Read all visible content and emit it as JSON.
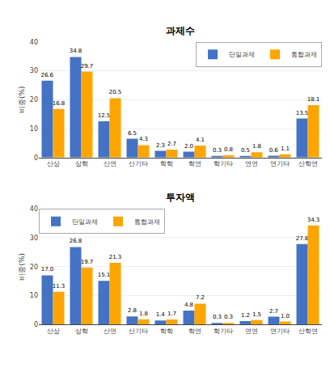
{
  "chart_data": [
    {
      "type": "bar",
      "title": "과제수",
      "categories": [
        "산상",
        "상학",
        "산연",
        "산기타",
        "학학",
        "학연",
        "학기타",
        "연연",
        "연기타",
        "산학연"
      ],
      "series": [
        {
          "name": "단일과제",
          "color": "#4472C4",
          "values": [
            26.6,
            34.8,
            12.5,
            6.5,
            2.3,
            2.0,
            0.3,
            0.5,
            0.6,
            13.5
          ],
          "value_labels": [
            "26.6",
            "34.8",
            "12.5",
            "6.5",
            "2.3",
            "2.0",
            "0.3",
            "0.5",
            "0.6",
            "13.5"
          ]
        },
        {
          "name": "통합과제",
          "color": "#FFA500",
          "values": [
            16.8,
            29.7,
            20.5,
            4.3,
            2.7,
            4.1,
            0.8,
            1.8,
            1.1,
            18.1
          ],
          "value_labels": [
            "16.8",
            "29.7",
            "20.5",
            "4.3",
            "2.7",
            "4.1",
            "0.8",
            "1.8",
            "1.1",
            "18.1"
          ]
        }
      ],
      "ylabel": "비중(%)",
      "ylim": [
        0,
        40
      ],
      "yticks": [
        0,
        10,
        20,
        30,
        40
      ],
      "grid": true,
      "legend": "upper right",
      "data_labels": true
    },
    {
      "type": "bar",
      "title": "투자액",
      "categories": [
        "산상",
        "상학",
        "산연",
        "산기타",
        "학학",
        "학연",
        "학기타",
        "연연",
        "연기타",
        "산학연"
      ],
      "series": [
        {
          "name": "단일과제",
          "color": "#4472C4",
          "values": [
            17.0,
            26.8,
            15.1,
            2.8,
            1.4,
            4.8,
            0.3,
            1.2,
            2.7,
            27.8
          ],
          "value_labels": [
            "17.0",
            "26.8",
            "15.1",
            "2.8",
            "1.4",
            "4.8",
            "0.3",
            "1.2",
            "2.7",
            "27.8"
          ]
        },
        {
          "name": "통합과제",
          "color": "#FFA500",
          "values": [
            11.3,
            19.7,
            21.3,
            1.8,
            1.7,
            7.2,
            0.3,
            1.5,
            1.0,
            34.3
          ],
          "value_labels": [
            "11.3",
            "19.7",
            "21.3",
            "1.8",
            "1.7",
            "7.2",
            "0.3",
            "1.5",
            "1.0",
            "34.3"
          ]
        }
      ],
      "ylabel": "비중(%)",
      "ylim": [
        0,
        40
      ],
      "yticks": [
        0,
        10,
        20,
        30,
        40
      ],
      "grid": true,
      "legend": "upper left",
      "data_labels": true
    }
  ]
}
